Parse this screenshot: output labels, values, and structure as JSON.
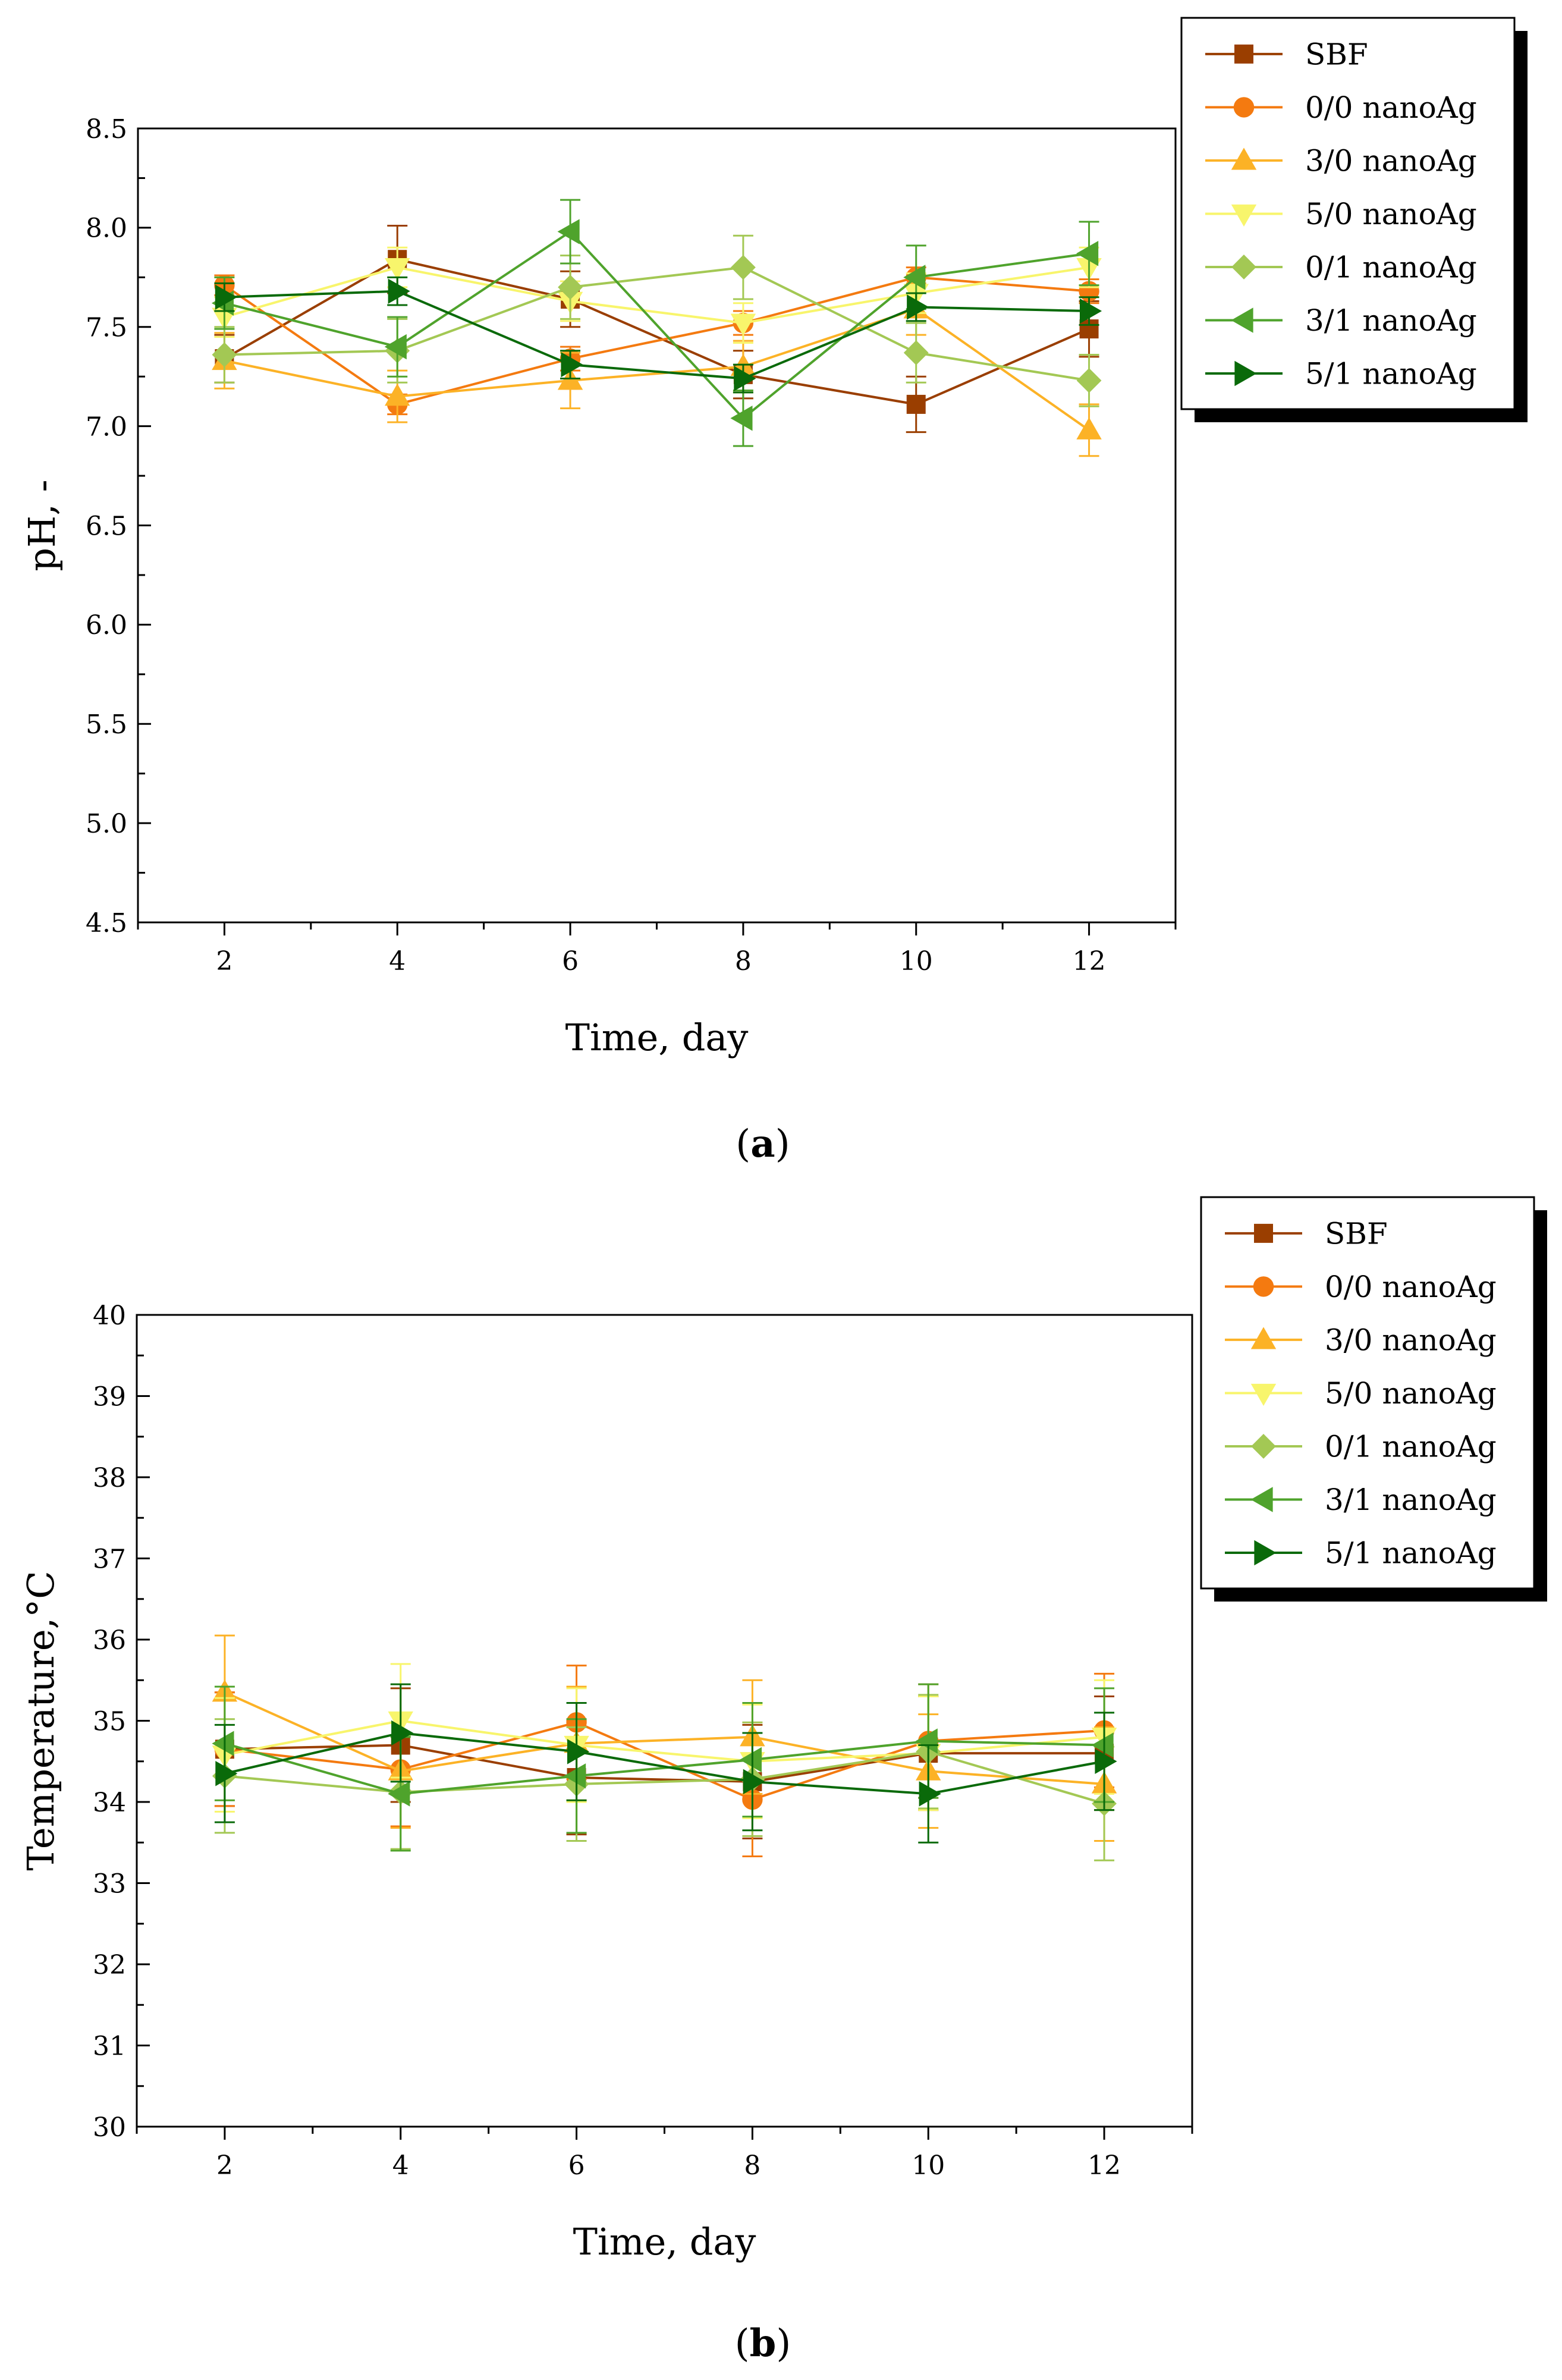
{
  "chart_data": [
    {
      "type": "line",
      "panel_label": "a",
      "xlabel": "Time, day",
      "ylabel": "pH, -",
      "xlim": [
        1,
        13
      ],
      "ylim": [
        4.5,
        8.5
      ],
      "xticks": [
        2,
        4,
        6,
        8,
        10,
        12
      ],
      "yticks": [
        4.5,
        5.0,
        5.5,
        6.0,
        6.5,
        7.0,
        7.5,
        8.0,
        8.5
      ],
      "x": [
        2,
        4,
        6,
        8,
        10,
        12
      ],
      "legend_position": "top-right-outside",
      "series": [
        {
          "name": "SBF",
          "color": "#9a3e00",
          "marker": "square",
          "values": [
            7.34,
            7.84,
            7.64,
            7.26,
            7.11,
            7.49
          ],
          "errors": [
            0.12,
            0.17,
            0.14,
            0.12,
            0.14,
            0.14
          ]
        },
        {
          "name": "0/0 nanoAg",
          "color": "#f47a10",
          "marker": "circle",
          "values": [
            7.71,
            7.11,
            7.34,
            7.52,
            7.75,
            7.68
          ],
          "errors": [
            0.05,
            0.05,
            0.06,
            0.06,
            0.05,
            0.06
          ]
        },
        {
          "name": "3/0 nanoAg",
          "color": "#fcb226",
          "marker": "triangle-up",
          "values": [
            7.33,
            7.15,
            7.23,
            7.3,
            7.59,
            6.98
          ],
          "errors": [
            0.14,
            0.13,
            0.14,
            0.13,
            0.13,
            0.13
          ]
        },
        {
          "name": "5/0 nanoAg",
          "color": "#f8f56c",
          "marker": "triangle-down",
          "values": [
            7.55,
            7.8,
            7.63,
            7.52,
            7.67,
            7.8
          ],
          "errors": [
            0.1,
            0.1,
            0.1,
            0.1,
            0.1,
            0.1
          ]
        },
        {
          "name": "0/1 nanoAg",
          "color": "#a3c854",
          "marker": "diamond",
          "values": [
            7.36,
            7.38,
            7.7,
            7.8,
            7.37,
            7.23
          ],
          "errors": [
            0.14,
            0.16,
            0.16,
            0.16,
            0.15,
            0.13
          ]
        },
        {
          "name": "3/1 nanoAg",
          "color": "#4fa32c",
          "marker": "triangle-left",
          "values": [
            7.62,
            7.4,
            7.98,
            7.04,
            7.75,
            7.87
          ],
          "errors": [
            0.13,
            0.15,
            0.16,
            0.14,
            0.16,
            0.16
          ]
        },
        {
          "name": "5/1 nanoAg",
          "color": "#0a6a0a",
          "marker": "triangle-right",
          "values": [
            7.65,
            7.68,
            7.31,
            7.24,
            7.6,
            7.58
          ],
          "errors": [
            0.07,
            0.07,
            0.07,
            0.07,
            0.07,
            0.07
          ]
        }
      ]
    },
    {
      "type": "line",
      "panel_label": "b",
      "xlabel": "Time, day",
      "ylabel": "Temperature,°C",
      "xlim": [
        1,
        13
      ],
      "ylim": [
        30,
        40
      ],
      "xticks": [
        2,
        4,
        6,
        8,
        10,
        12
      ],
      "yticks": [
        30,
        31,
        32,
        33,
        34,
        35,
        36,
        37,
        38,
        39,
        40
      ],
      "x": [
        2,
        4,
        6,
        8,
        10,
        12
      ],
      "legend_position": "top-right-outside",
      "series": [
        {
          "name": "SBF",
          "color": "#9a3e00",
          "marker": "square",
          "values": [
            34.65,
            34.7,
            34.3,
            34.25,
            34.6,
            34.6
          ],
          "errors": [
            0.7,
            0.7,
            0.7,
            0.7,
            0.7,
            0.7
          ]
        },
        {
          "name": "0/0 nanoAg",
          "color": "#f47a10",
          "marker": "circle",
          "values": [
            34.65,
            34.4,
            34.98,
            34.03,
            34.75,
            34.88
          ],
          "errors": [
            0.7,
            0.7,
            0.7,
            0.7,
            0.7,
            0.7
          ]
        },
        {
          "name": "3/0 nanoAg",
          "color": "#fcb226",
          "marker": "triangle-up",
          "values": [
            35.35,
            34.38,
            34.72,
            34.8,
            34.38,
            34.22
          ],
          "errors": [
            0.7,
            0.7,
            0.7,
            0.7,
            0.7,
            0.7
          ]
        },
        {
          "name": "5/0 nanoAg",
          "color": "#f8f56c",
          "marker": "triangle-down",
          "values": [
            34.58,
            35.0,
            34.7,
            34.5,
            34.6,
            34.8
          ],
          "errors": [
            0.7,
            0.7,
            0.7,
            0.7,
            0.7,
            0.7
          ]
        },
        {
          "name": "0/1 nanoAg",
          "color": "#a3c854",
          "marker": "diamond",
          "values": [
            34.32,
            34.12,
            34.22,
            34.28,
            34.62,
            33.98
          ],
          "errors": [
            0.7,
            0.7,
            0.7,
            0.7,
            0.7,
            0.7
          ]
        },
        {
          "name": "3/1 nanoAg",
          "color": "#4fa32c",
          "marker": "triangle-left",
          "values": [
            34.72,
            34.1,
            34.32,
            34.52,
            34.75,
            34.7
          ],
          "errors": [
            0.7,
            0.7,
            0.7,
            0.7,
            0.7,
            0.7
          ]
        },
        {
          "name": "5/1 nanoAg",
          "color": "#0a6a0a",
          "marker": "triangle-right",
          "values": [
            34.35,
            34.85,
            34.62,
            34.25,
            34.1,
            34.5
          ],
          "errors": [
            0.6,
            0.6,
            0.6,
            0.6,
            0.6,
            0.6
          ]
        }
      ]
    }
  ]
}
